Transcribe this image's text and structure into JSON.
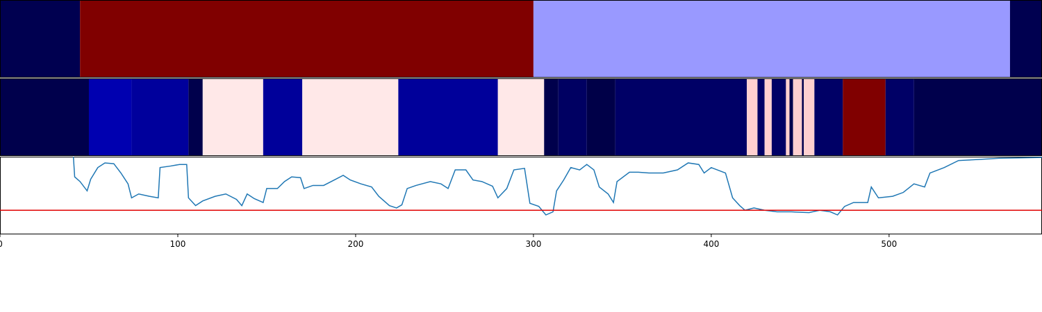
{
  "chart_data": [
    {
      "type": "segments",
      "xlim": [
        0,
        586
      ],
      "segments": [
        {
          "start": 0,
          "end": 45,
          "color": "#000050"
        },
        {
          "start": 45,
          "end": 300,
          "color": "#800000"
        },
        {
          "start": 300,
          "end": 568,
          "color": "#9999ff"
        },
        {
          "start": 568,
          "end": 586,
          "color": "#000050"
        }
      ]
    },
    {
      "type": "segments",
      "xlim": [
        0,
        586
      ],
      "segments": [
        {
          "start": 0,
          "end": 50,
          "color": "#00004c"
        },
        {
          "start": 50,
          "end": 74,
          "color": "#0000b0"
        },
        {
          "start": 74,
          "end": 106,
          "color": "#00009c"
        },
        {
          "start": 106,
          "end": 114,
          "color": "#00004c"
        },
        {
          "start": 114,
          "end": 148,
          "color": "#ffe8e8"
        },
        {
          "start": 148,
          "end": 170,
          "color": "#00009a"
        },
        {
          "start": 170,
          "end": 224,
          "color": "#ffe8e8"
        },
        {
          "start": 224,
          "end": 280,
          "color": "#00009a"
        },
        {
          "start": 280,
          "end": 306,
          "color": "#ffe8e8"
        },
        {
          "start": 306,
          "end": 314,
          "color": "#00004c"
        },
        {
          "start": 314,
          "end": 330,
          "color": "#000062"
        },
        {
          "start": 330,
          "end": 346,
          "color": "#000048"
        },
        {
          "start": 346,
          "end": 420,
          "color": "#000066"
        },
        {
          "start": 420,
          "end": 426,
          "color": "#ffd0d0"
        },
        {
          "start": 426,
          "end": 430,
          "color": "#000066"
        },
        {
          "start": 430,
          "end": 434,
          "color": "#ffd0d0"
        },
        {
          "start": 434,
          "end": 442,
          "color": "#000066"
        },
        {
          "start": 442,
          "end": 444,
          "color": "#ffd0d0"
        },
        {
          "start": 444,
          "end": 446,
          "color": "#00004c"
        },
        {
          "start": 446,
          "end": 451,
          "color": "#ffd0d0"
        },
        {
          "start": 451,
          "end": 452,
          "color": "#00004c"
        },
        {
          "start": 452,
          "end": 458,
          "color": "#ffd0d0"
        },
        {
          "start": 458,
          "end": 474,
          "color": "#000066"
        },
        {
          "start": 474,
          "end": 498,
          "color": "#800000"
        },
        {
          "start": 498,
          "end": 514,
          "color": "#000066"
        },
        {
          "start": 514,
          "end": 586,
          "color": "#00004c"
        }
      ]
    },
    {
      "type": "line",
      "xlim": [
        0,
        586
      ],
      "ylim": [
        0,
        1
      ],
      "xticks": [
        0,
        100,
        200,
        300,
        400,
        500
      ],
      "hline": {
        "value": 0.31,
        "color": "#e00000"
      },
      "x": [
        41,
        42,
        45,
        49,
        51,
        55,
        59,
        64,
        68,
        72,
        74,
        78,
        84,
        89,
        90,
        96,
        101,
        105,
        106,
        110,
        114,
        121,
        127,
        133,
        136,
        139,
        143,
        148,
        150,
        156,
        160,
        164,
        169,
        171,
        176,
        182,
        188,
        193,
        197,
        203,
        209,
        213,
        219,
        223,
        226,
        229,
        234,
        242,
        248,
        252,
        256,
        262,
        266,
        271,
        277,
        280,
        285,
        289,
        295,
        298,
        303,
        307,
        311,
        313,
        317,
        321,
        326,
        330,
        334,
        337,
        342,
        345,
        347,
        354,
        359,
        365,
        373,
        381,
        387,
        393,
        396,
        400,
        408,
        412,
        416,
        419,
        424,
        430,
        437,
        445,
        455,
        461,
        467,
        471,
        475,
        480,
        488,
        490,
        494,
        502,
        508,
        514,
        520,
        523,
        531,
        539,
        547,
        562,
        586
      ],
      "series": [
        {
          "color": "#1f77b4",
          "values": [
            1.1,
            0.74,
            0.68,
            0.56,
            0.71,
            0.86,
            0.92,
            0.91,
            0.79,
            0.65,
            0.47,
            0.52,
            0.49,
            0.47,
            0.86,
            0.88,
            0.9,
            0.9,
            0.47,
            0.37,
            0.43,
            0.49,
            0.52,
            0.45,
            0.37,
            0.52,
            0.46,
            0.41,
            0.59,
            0.59,
            0.68,
            0.74,
            0.73,
            0.59,
            0.63,
            0.63,
            0.7,
            0.76,
            0.7,
            0.65,
            0.61,
            0.49,
            0.37,
            0.34,
            0.38,
            0.59,
            0.63,
            0.68,
            0.65,
            0.59,
            0.83,
            0.83,
            0.7,
            0.68,
            0.62,
            0.47,
            0.59,
            0.83,
            0.85,
            0.4,
            0.36,
            0.25,
            0.29,
            0.56,
            0.7,
            0.86,
            0.83,
            0.9,
            0.83,
            0.61,
            0.52,
            0.41,
            0.68,
            0.8,
            0.8,
            0.79,
            0.79,
            0.83,
            0.92,
            0.9,
            0.79,
            0.86,
            0.79,
            0.47,
            0.37,
            0.31,
            0.34,
            0.31,
            0.29,
            0.29,
            0.28,
            0.31,
            0.29,
            0.25,
            0.36,
            0.41,
            0.41,
            0.61,
            0.47,
            0.49,
            0.54,
            0.65,
            0.61,
            0.79,
            0.86,
            0.95,
            0.96,
            0.98,
            0.99
          ]
        }
      ]
    }
  ]
}
